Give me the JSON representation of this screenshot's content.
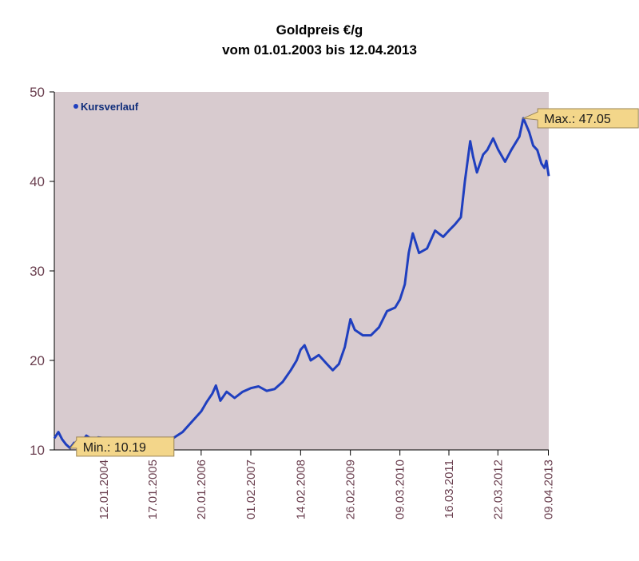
{
  "chart_data": {
    "type": "line",
    "title": "Goldpreis €/g",
    "subtitle": "vom 01.01.2003 bis 12.04.2013",
    "xlabel": "",
    "ylabel": "",
    "x_range": [
      "2003-01-01",
      "2013-04-12"
    ],
    "ylim": [
      10,
      50
    ],
    "yticks": [
      10,
      20,
      30,
      40,
      50
    ],
    "xticks": [
      {
        "date": "2004-01-12",
        "label": "12.01.2004"
      },
      {
        "date": "2005-01-17",
        "label": "17.01.2005"
      },
      {
        "date": "2006-01-20",
        "label": "20.01.2006"
      },
      {
        "date": "2007-02-01",
        "label": "01.02.2007"
      },
      {
        "date": "2008-02-14",
        "label": "14.02.2008"
      },
      {
        "date": "2009-02-26",
        "label": "26.02.2009"
      },
      {
        "date": "2010-03-09",
        "label": "09.03.2010"
      },
      {
        "date": "2011-03-16",
        "label": "16.03.2011"
      },
      {
        "date": "2012-03-22",
        "label": "22.03.2012"
      },
      {
        "date": "2013-04-09",
        "label": "09.04.2013"
      }
    ],
    "grid": false,
    "legend": {
      "position": "top-left",
      "entries": [
        "Kursverlauf"
      ]
    },
    "series": [
      {
        "name": "Kursverlauf",
        "color": "#1f3fbf",
        "points": [
          [
            "2003-01-01",
            11.3
          ],
          [
            "2003-02-01",
            12.0
          ],
          [
            "2003-03-01",
            11.2
          ],
          [
            "2003-04-01",
            10.6
          ],
          [
            "2003-05-01",
            10.2
          ],
          [
            "2003-06-01",
            10.8
          ],
          [
            "2003-07-01",
            10.6
          ],
          [
            "2003-08-01",
            11.0
          ],
          [
            "2003-09-01",
            11.6
          ],
          [
            "2003-10-01",
            11.3
          ],
          [
            "2003-11-01",
            11.0
          ],
          [
            "2003-12-01",
            11.4
          ],
          [
            "2004-01-12",
            11.3
          ],
          [
            "2004-03-01",
            11.0
          ],
          [
            "2004-05-01",
            10.8
          ],
          [
            "2004-07-01",
            10.9
          ],
          [
            "2004-09-01",
            10.8
          ],
          [
            "2004-11-01",
            11.2
          ],
          [
            "2005-01-17",
            10.9
          ],
          [
            "2005-03-01",
            11.0
          ],
          [
            "2005-05-01",
            11.1
          ],
          [
            "2005-07-01",
            11.4
          ],
          [
            "2005-09-01",
            12.0
          ],
          [
            "2005-11-01",
            13.0
          ],
          [
            "2006-01-20",
            14.3
          ],
          [
            "2006-03-01",
            15.3
          ],
          [
            "2006-04-15",
            16.3
          ],
          [
            "2006-05-12",
            17.2
          ],
          [
            "2006-06-15",
            15.5
          ],
          [
            "2006-08-01",
            16.5
          ],
          [
            "2006-10-01",
            15.8
          ],
          [
            "2006-12-01",
            16.5
          ],
          [
            "2007-02-01",
            16.9
          ],
          [
            "2007-04-01",
            17.1
          ],
          [
            "2007-06-01",
            16.6
          ],
          [
            "2007-08-01",
            16.8
          ],
          [
            "2007-10-01",
            17.6
          ],
          [
            "2007-12-01",
            18.9
          ],
          [
            "2008-01-15",
            20.0
          ],
          [
            "2008-02-14",
            21.2
          ],
          [
            "2008-03-15",
            21.7
          ],
          [
            "2008-05-01",
            20.0
          ],
          [
            "2008-07-01",
            20.6
          ],
          [
            "2008-09-01",
            19.6
          ],
          [
            "2008-10-15",
            18.9
          ],
          [
            "2008-12-01",
            19.6
          ],
          [
            "2009-01-15",
            21.5
          ],
          [
            "2009-02-26",
            24.6
          ],
          [
            "2009-04-01",
            23.4
          ],
          [
            "2009-06-01",
            22.8
          ],
          [
            "2009-08-01",
            22.8
          ],
          [
            "2009-10-01",
            23.7
          ],
          [
            "2009-12-01",
            25.5
          ],
          [
            "2010-02-01",
            25.9
          ],
          [
            "2010-03-09",
            26.8
          ],
          [
            "2010-04-15",
            28.5
          ],
          [
            "2010-05-15",
            32.0
          ],
          [
            "2010-06-15",
            34.2
          ],
          [
            "2010-08-01",
            32.0
          ],
          [
            "2010-10-01",
            32.5
          ],
          [
            "2010-12-01",
            34.5
          ],
          [
            "2011-02-01",
            33.8
          ],
          [
            "2011-03-16",
            34.5
          ],
          [
            "2011-05-01",
            35.2
          ],
          [
            "2011-06-15",
            36.0
          ],
          [
            "2011-07-15",
            40.0
          ],
          [
            "2011-08-25",
            44.5
          ],
          [
            "2011-09-15",
            42.8
          ],
          [
            "2011-10-15",
            41.0
          ],
          [
            "2011-12-01",
            43.0
          ],
          [
            "2012-01-01",
            43.5
          ],
          [
            "2012-02-15",
            44.8
          ],
          [
            "2012-03-22",
            43.6
          ],
          [
            "2012-05-15",
            42.2
          ],
          [
            "2012-07-01",
            43.5
          ],
          [
            "2012-09-01",
            45.0
          ],
          [
            "2012-10-01",
            47.05
          ],
          [
            "2012-11-15",
            45.5
          ],
          [
            "2012-12-15",
            44.0
          ],
          [
            "2013-01-15",
            43.5
          ],
          [
            "2013-02-15",
            42.0
          ],
          [
            "2013-03-10",
            41.5
          ],
          [
            "2013-03-25",
            42.3
          ],
          [
            "2013-04-12",
            40.6
          ]
        ]
      }
    ],
    "annotations": [
      {
        "label": "Min.: 10.19",
        "date": "2003-05-01",
        "value": 10.19
      },
      {
        "label": "Max.: 47.05",
        "date": "2012-10-01",
        "value": 47.05
      }
    ],
    "colors": {
      "plot_background": "#d8cbcf",
      "line": "#1f3fbf",
      "axis_text": "#6b4050",
      "callout_fill": "#f3d68a"
    }
  }
}
